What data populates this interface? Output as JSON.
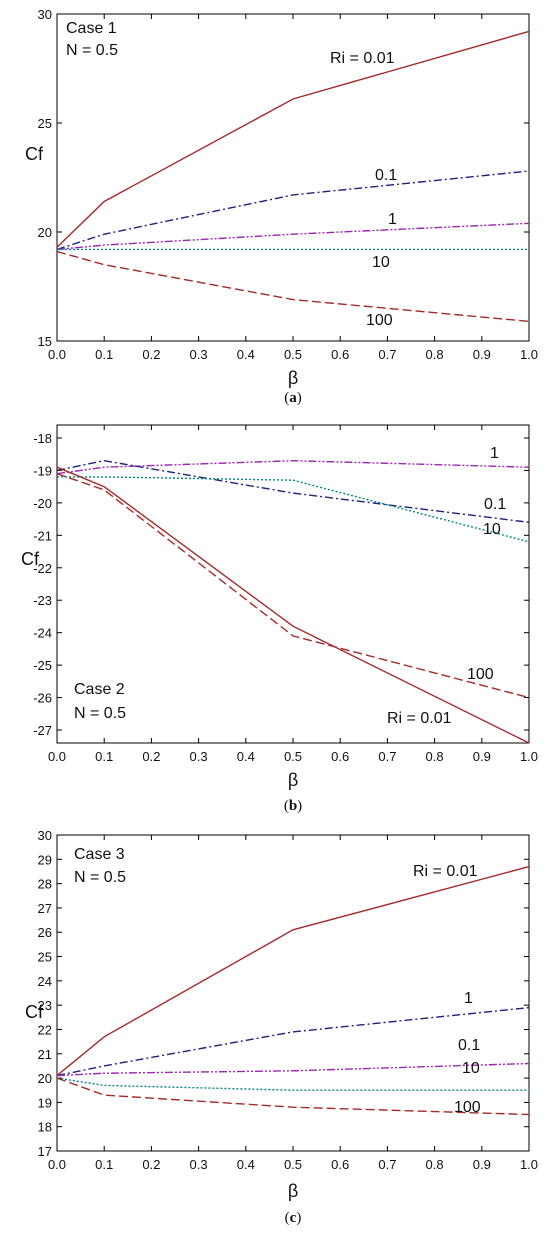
{
  "chart_data": [
    {
      "type": "line",
      "panel_caption": "(a)",
      "case_label": "Case 1",
      "param_label": "N = 0.5",
      "xlabel": "β",
      "ylabel": "Cf",
      "xlim": [
        0.0,
        1.0
      ],
      "ylim": [
        15,
        30
      ],
      "xticks": [
        "0.0",
        "0.1",
        "0.2",
        "0.3",
        "0.4",
        "0.5",
        "0.6",
        "0.7",
        "0.8",
        "0.9",
        "1.0"
      ],
      "yticks": [
        15,
        20,
        25,
        30
      ],
      "x": [
        0.0,
        0.1,
        0.5,
        1.0
      ],
      "series": [
        {
          "name": "Ri = 0.01",
          "color": "#a52a2a",
          "dash": "solid",
          "values": [
            19.3,
            21.4,
            26.1,
            29.2
          ]
        },
        {
          "name": "0.1",
          "color": "#1a237e",
          "dash": "dashdot",
          "values": [
            19.2,
            19.9,
            21.7,
            22.8
          ]
        },
        {
          "name": "1",
          "color": "#9c27b0",
          "dash": "dashdotdot",
          "values": [
            19.2,
            19.4,
            19.9,
            20.4
          ]
        },
        {
          "name": "10",
          "color": "#00897b",
          "dash": "dotted",
          "values": [
            19.2,
            19.2,
            19.2,
            19.2
          ]
        },
        {
          "name": "100",
          "color": "#a52a2a",
          "dash": "dashed",
          "values": [
            19.1,
            18.5,
            16.9,
            15.9
          ]
        }
      ]
    },
    {
      "type": "line",
      "panel_caption": "(b)",
      "case_label": "Case 2",
      "param_label": "N = 0.5",
      "xlabel": "β",
      "ylabel": "Cf",
      "xlim": [
        0.0,
        1.0
      ],
      "ylim": [
        -27.4,
        -17.6
      ],
      "xticks": [
        "0.0",
        "0.1",
        "0.2",
        "0.3",
        "0.4",
        "0.5",
        "0.6",
        "0.7",
        "0.8",
        "0.9",
        "1.0"
      ],
      "yticks": [
        -18,
        -19,
        -20,
        -21,
        -22,
        -23,
        -24,
        -25,
        -26,
        -27
      ],
      "x": [
        0.0,
        0.1,
        0.5,
        1.0
      ],
      "series": [
        {
          "name": "1",
          "color": "#9c27b0",
          "dash": "dashdotdot",
          "values": [
            -19.1,
            -18.9,
            -18.7,
            -18.9
          ]
        },
        {
          "name": "0.1",
          "color": "#1a237e",
          "dash": "dashdot",
          "values": [
            -19.0,
            -18.7,
            -19.7,
            -20.6
          ]
        },
        {
          "name": "10",
          "color": "#00897b",
          "dash": "dotted",
          "values": [
            -19.2,
            -19.2,
            -19.3,
            -21.2
          ]
        },
        {
          "name": "100",
          "color": "#a52a2a",
          "dash": "dashed",
          "values": [
            -19.1,
            -19.6,
            -24.1,
            -26.0
          ]
        },
        {
          "name": "Ri = 0.01",
          "color": "#a52a2a",
          "dash": "solid",
          "values": [
            -18.9,
            -19.5,
            -23.8,
            -27.4
          ]
        }
      ]
    },
    {
      "type": "line",
      "panel_caption": "(c)",
      "case_label": "Case 3",
      "param_label": "N = 0.5",
      "xlabel": "β",
      "ylabel": "Cf",
      "xlim": [
        0.0,
        1.0
      ],
      "ylim": [
        17,
        30
      ],
      "xticks": [
        "0.0",
        "0.1",
        "0.2",
        "0.3",
        "0.4",
        "0.5",
        "0.6",
        "0.7",
        "0.8",
        "0.9",
        "1.0"
      ],
      "yticks": [
        17,
        18,
        19,
        20,
        21,
        22,
        23,
        24,
        25,
        26,
        27,
        28,
        29,
        30
      ],
      "x": [
        0.0,
        0.1,
        0.5,
        1.0
      ],
      "series": [
        {
          "name": "Ri = 0.01",
          "color": "#a52a2a",
          "dash": "solid",
          "values": [
            20.1,
            21.7,
            26.1,
            28.7
          ]
        },
        {
          "name": "1",
          "color": "#1a237e",
          "dash": "dashdot",
          "values": [
            20.1,
            20.5,
            21.9,
            22.9
          ]
        },
        {
          "name": "0.1",
          "color": "#9c27b0",
          "dash": "dashdotdot",
          "values": [
            20.1,
            20.2,
            20.3,
            20.6
          ]
        },
        {
          "name": "10",
          "color": "#00897b",
          "dash": "dotted",
          "values": [
            20.0,
            19.7,
            19.5,
            19.5
          ]
        },
        {
          "name": "100",
          "color": "#a52a2a",
          "dash": "dashed",
          "values": [
            20.0,
            19.3,
            18.8,
            18.5
          ]
        }
      ]
    }
  ]
}
